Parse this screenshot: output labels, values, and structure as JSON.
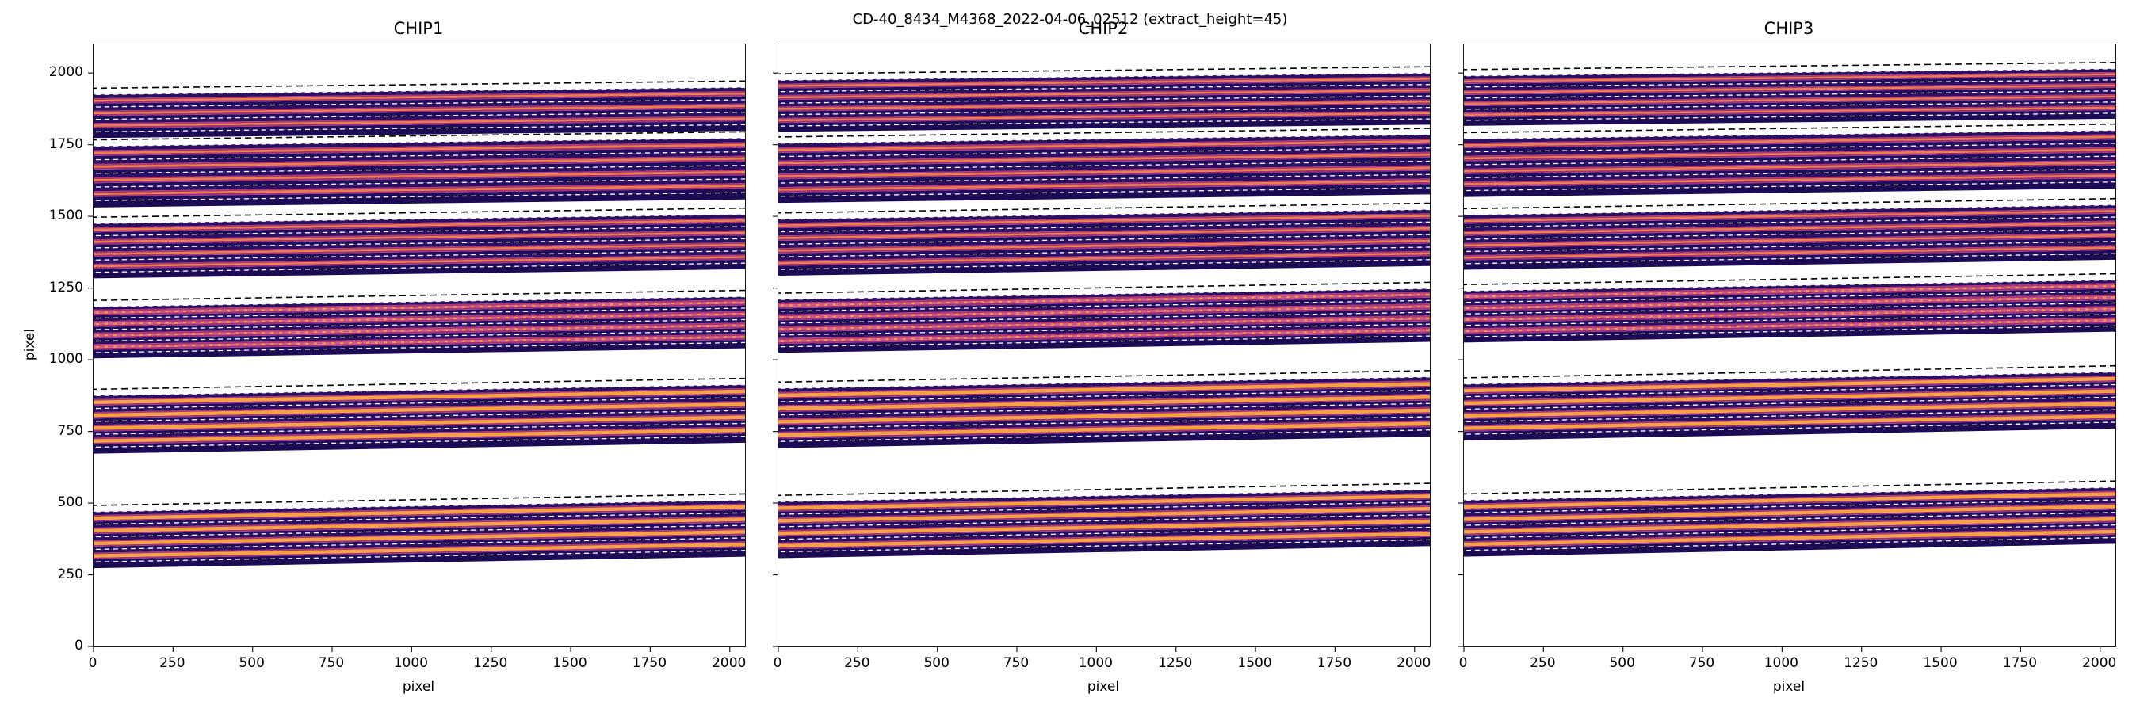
{
  "chart_data": {
    "type": "heatmap",
    "title": "CD-40_8434_M4368_2022-04-06_02512  (extract_height=45)",
    "subtitle": "",
    "xlabel": "pixel",
    "ylabel": "pixel",
    "xlim": [
      0,
      2048
    ],
    "ylim": [
      0,
      2100
    ],
    "xticks": [
      0,
      250,
      500,
      750,
      1000,
      1250,
      1500,
      1750,
      2000
    ],
    "yticks": [
      0,
      250,
      500,
      750,
      1000,
      1250,
      1500,
      1750,
      2000
    ],
    "grid": false,
    "legend": "none",
    "extract_height": 45,
    "colors": {
      "deep": "#1e0c5e",
      "dark": "#2c0f63",
      "mid": "#a42e7c",
      "mid2": "#b43473",
      "bright_cool": "#e8813f",
      "bright_pink": "#cf5c7f",
      "bright_warm": "#f4a43e",
      "base": "#1c0a55",
      "dash_black": "#000000",
      "dash_white": "#ffffff",
      "dash_orange": "#f0a040"
    },
    "panels": [
      {
        "name": "CHIP1",
        "order_groups": [
          {
            "y_bottom": 1795,
            "height": 130,
            "slope": 25,
            "n_orders": 3,
            "tone": "cool"
          },
          {
            "y_bottom": 1555,
            "height": 190,
            "slope": 28,
            "n_orders": 4,
            "tone": "cool"
          },
          {
            "y_bottom": 1305,
            "height": 170,
            "slope": 32,
            "n_orders": 4,
            "tone": "cool"
          },
          {
            "y_bottom": 1025,
            "height": 160,
            "slope": 35,
            "n_orders": 4,
            "tone": "pink"
          },
          {
            "y_bottom": 695,
            "height": 180,
            "slope": 38,
            "n_orders": 4,
            "tone": "warm"
          },
          {
            "y_bottom": 295,
            "height": 175,
            "slope": 40,
            "n_orders": 4,
            "tone": "warm"
          }
        ]
      },
      {
        "name": "CHIP2",
        "order_groups": [
          {
            "y_bottom": 1815,
            "height": 160,
            "slope": 25,
            "n_orders": 4,
            "tone": "cool"
          },
          {
            "y_bottom": 1570,
            "height": 185,
            "slope": 30,
            "n_orders": 4,
            "tone": "cool"
          },
          {
            "y_bottom": 1315,
            "height": 175,
            "slope": 34,
            "n_orders": 4,
            "tone": "cool"
          },
          {
            "y_bottom": 1045,
            "height": 165,
            "slope": 38,
            "n_orders": 4,
            "tone": "pink"
          },
          {
            "y_bottom": 715,
            "height": 185,
            "slope": 40,
            "n_orders": 4,
            "tone": "warm"
          },
          {
            "y_bottom": 330,
            "height": 175,
            "slope": 42,
            "n_orders": 4,
            "tone": "warm"
          }
        ]
      },
      {
        "name": "CHIP3",
        "order_groups": [
          {
            "y_bottom": 1835,
            "height": 155,
            "slope": 25,
            "n_orders": 4,
            "tone": "cool"
          },
          {
            "y_bottom": 1590,
            "height": 180,
            "slope": 30,
            "n_orders": 4,
            "tone": "cool"
          },
          {
            "y_bottom": 1335,
            "height": 170,
            "slope": 35,
            "n_orders": 4,
            "tone": "cool"
          },
          {
            "y_bottom": 1080,
            "height": 160,
            "slope": 38,
            "n_orders": 4,
            "tone": "pink"
          },
          {
            "y_bottom": 740,
            "height": 175,
            "slope": 42,
            "n_orders": 4,
            "tone": "warm"
          },
          {
            "y_bottom": 335,
            "height": 175,
            "slope": 45,
            "n_orders": 4,
            "tone": "warm"
          }
        ]
      }
    ]
  }
}
